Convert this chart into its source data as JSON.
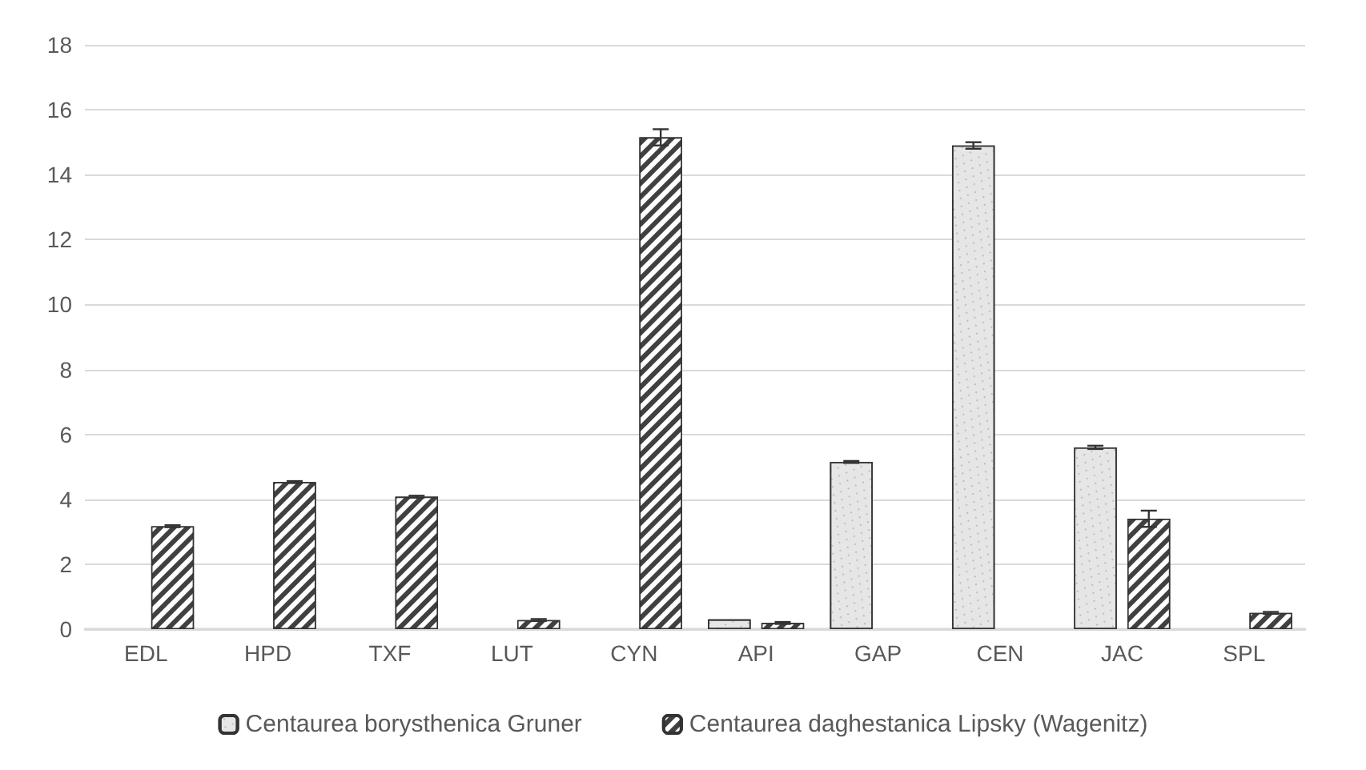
{
  "chart_data": {
    "type": "bar",
    "categories": [
      "EDL",
      "HPD",
      "TXF",
      "LUT",
      "CYN",
      "API",
      "GAP",
      "CEN",
      "JAC",
      "SPL"
    ],
    "series": [
      {
        "name": "Centaurea borysthenica Gruner",
        "color": "#e6e6e6",
        "values": [
          null,
          null,
          null,
          null,
          null,
          0.3,
          5.15,
          14.9,
          5.6,
          null
        ],
        "errors": [
          null,
          null,
          null,
          null,
          null,
          null,
          0.03,
          0.1,
          0.05,
          null
        ]
      },
      {
        "name": "Centaurea daghestanica Lipsky (Wagenitz)",
        "color": "#404040",
        "values": [
          3.17,
          4.53,
          4.08,
          0.28,
          15.15,
          0.19,
          null,
          null,
          3.4,
          0.5
        ],
        "errors": [
          0.03,
          0.03,
          0.03,
          0.03,
          0.25,
          0.03,
          null,
          null,
          0.25,
          0.03
        ]
      }
    ],
    "ylim": [
      0,
      18
    ],
    "yticks": [
      0,
      2,
      4,
      6,
      8,
      10,
      12,
      14,
      16,
      18
    ],
    "grid": "y",
    "legend": "bottom"
  }
}
